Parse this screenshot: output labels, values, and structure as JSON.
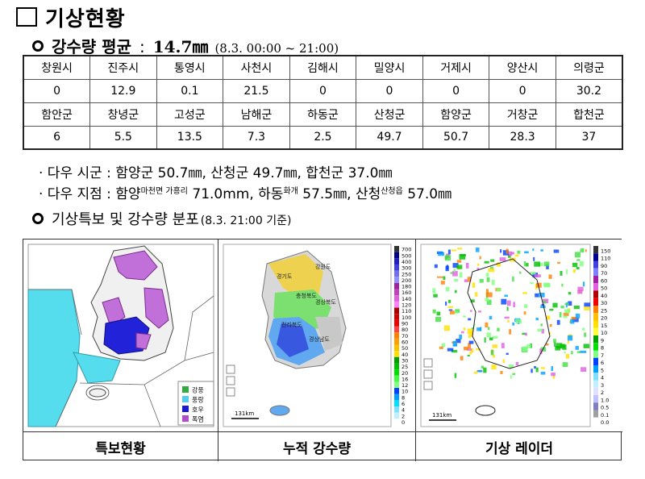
{
  "title": "기상현황",
  "avg": {
    "label": "강수량 평균",
    "separator": ":",
    "value": "14.7㎜",
    "period": "(8.3. 00:00 ~ 21:00)"
  },
  "table": {
    "rows": [
      [
        "창원시",
        "진주시",
        "통영시",
        "사천시",
        "김해시",
        "밀양시",
        "거제시",
        "양산시",
        "의령군"
      ],
      [
        "0",
        "12.9",
        "0.1",
        "21.5",
        "0",
        "0",
        "0",
        "0",
        "30.2"
      ],
      [
        "함안군",
        "창녕군",
        "고성군",
        "남해군",
        "하동군",
        "산청군",
        "함양군",
        "거창군",
        "합천군"
      ],
      [
        "6",
        "5.5",
        "13.5",
        "7.3",
        "2.5",
        "49.7",
        "50.7",
        "28.3",
        "37"
      ]
    ]
  },
  "bullets": {
    "b1": {
      "prefix": "· 다우 시군 : ",
      "text": "함양군 50.7㎜, 산청군 49.7㎜, 합천군 37.0㎜"
    },
    "b2": {
      "prefix": "· 다우 지점 : ",
      "s1": "함양",
      "s1sup": "마천면 가흥리",
      "s1val": " 71.0mm, ",
      "s2": "하동",
      "s2sup": "화개",
      "s2val": " 57.5㎜, ",
      "s3": "산청",
      "s3sup": "산청읍",
      "s3val": " 57.0㎜"
    }
  },
  "section2": {
    "label": "기상특보 및 강수량 분포",
    "note": "(8.3. 21:00 기준)"
  },
  "maps": {
    "warning": {
      "caption": "특보현황",
      "legend": [
        {
          "label": "강풍",
          "color": "#33aa44"
        },
        {
          "label": "풍랑",
          "color": "#55ccee"
        },
        {
          "label": "호우",
          "color": "#1a1ad0"
        },
        {
          "label": "폭염",
          "color": "#b050c8"
        }
      ]
    },
    "rainfall": {
      "caption": "누적 강수량",
      "scale_label": "131km",
      "scale": [
        "700",
        "500",
        "400",
        "300",
        "250",
        "200",
        "180",
        "160",
        "140",
        "120",
        "110",
        "100",
        "90",
        "80",
        "70",
        "60",
        "50",
        "40",
        "30",
        "25",
        "20",
        "16",
        "12",
        "10",
        "8",
        "6",
        "4",
        "2",
        "0"
      ],
      "regions": [
        "경기도",
        "충청북도",
        "경상북도",
        "전라북도",
        "경상남도",
        "강원도"
      ]
    },
    "radar": {
      "caption": "기상 레이더",
      "scale_label": "131km",
      "scale": [
        "150",
        "110",
        "90",
        "70",
        "60",
        "50",
        "40",
        "30",
        "25",
        "20",
        "15",
        "10",
        "9",
        "8",
        "7",
        "6",
        "5",
        "4",
        "3",
        "2",
        "1.0",
        "0.5",
        "0.1",
        "0.0"
      ]
    }
  }
}
